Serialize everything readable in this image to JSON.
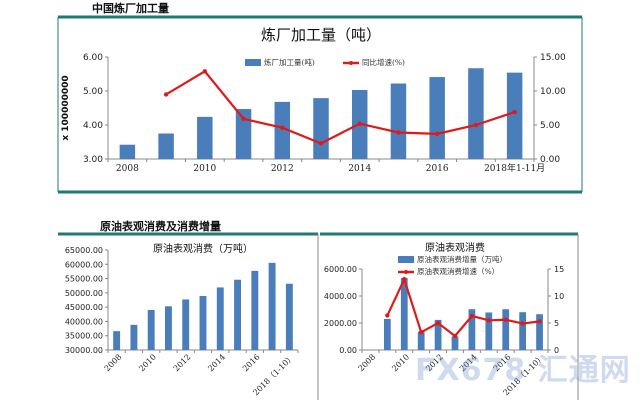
{
  "sections": {
    "top": "中国炼厂加工量",
    "bottom": "原油表观消费及消费增量"
  },
  "watermark": "FX678 汇通网",
  "colors": {
    "bar": "#4a7ebb",
    "line": "#e01a1a",
    "frame": "#1f7a74"
  },
  "chart_data": [
    {
      "type": "bar+line",
      "title": "炼厂加工量（吨）",
      "ylabel": "x 100000000",
      "categories": [
        "2008",
        "2009",
        "2010",
        "2011",
        "2012",
        "2013",
        "2014",
        "2015",
        "2016",
        "2017",
        "2018年1-11月"
      ],
      "xtick_labels": [
        "2008",
        "",
        "2010",
        "",
        "2012",
        "",
        "2014",
        "",
        "2016",
        "",
        "2018年1-11月"
      ],
      "ylim": [
        3,
        6
      ],
      "yticks": [
        "3.00",
        "4.00",
        "5.00",
        "6.00"
      ],
      "y2lim": [
        0,
        15
      ],
      "y2ticks": [
        "0.00",
        "5.00",
        "10.00",
        "15.00"
      ],
      "legend": "top",
      "series": [
        {
          "name": "炼厂加工量(吨)",
          "type": "bar",
          "axis": "left",
          "values": [
            3.42,
            3.75,
            4.24,
            4.47,
            4.68,
            4.79,
            5.03,
            5.22,
            5.41,
            5.67,
            5.54
          ]
        },
        {
          "name": "同比增速(%)",
          "type": "line",
          "axis": "right",
          "values": [
            null,
            9.5,
            12.9,
            5.9,
            4.6,
            2.3,
            5.2,
            3.9,
            3.7,
            5.0,
            6.9
          ]
        }
      ]
    },
    {
      "type": "bar",
      "title": "原油表观消费（万吨）",
      "categories": [
        "2008",
        "2009",
        "2010",
        "2011",
        "2012",
        "2013",
        "2014",
        "2015",
        "2016",
        "2017",
        "2018（1-10）"
      ],
      "xtick_labels": [
        "2008",
        "",
        "2010",
        "",
        "2012",
        "",
        "2014",
        "",
        "2016",
        "",
        "2018（1-10）"
      ],
      "ylim": [
        30000,
        65000
      ],
      "yticks": [
        "30000.00",
        "35000.00",
        "40000.00",
        "45000.00",
        "50000.00",
        "55000.00",
        "60000.00",
        "65000.00"
      ],
      "series": [
        {
          "type": "bar",
          "values": [
            36600,
            38800,
            44000,
            45300,
            47700,
            48900,
            51900,
            54600,
            57700,
            60500,
            53200
          ]
        }
      ]
    },
    {
      "type": "bar+line",
      "title": "原油表观消费",
      "categories": [
        "2008",
        "2009",
        "2010",
        "2011",
        "2012",
        "2013",
        "2014",
        "2015",
        "2016",
        "2017",
        "2018（1-10）"
      ],
      "xtick_labels": [
        "2008",
        "",
        "2010",
        "",
        "2012",
        "",
        "2014",
        "",
        "2016",
        "",
        "2018（1-10）"
      ],
      "ylim": [
        0,
        6000
      ],
      "yticks": [
        "0.00",
        "2000.00",
        "4000.00",
        "6000.00"
      ],
      "y2lim": [
        0,
        15
      ],
      "y2ticks": [
        "0",
        "5",
        "10",
        "15"
      ],
      "legend": "top",
      "series": [
        {
          "name": "原油表观消费增量（万吨）",
          "type": "bar",
          "axis": "left",
          "values": [
            null,
            2300,
            5330,
            1360,
            2230,
            1000,
            3020,
            2780,
            3020,
            2800,
            2650
          ]
        },
        {
          "name": "原油表观消费增速（%）",
          "type": "line",
          "axis": "right",
          "values": [
            null,
            6.4,
            13.1,
            3.3,
            5.0,
            2.6,
            6.3,
            5.5,
            5.6,
            4.9,
            5.3
          ]
        }
      ]
    }
  ]
}
